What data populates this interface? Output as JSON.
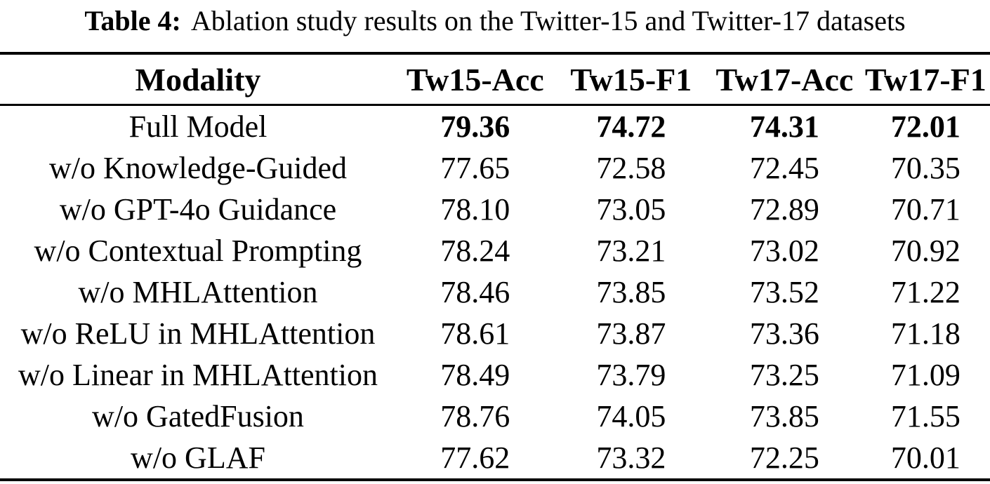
{
  "caption": {
    "label": "Table 4:",
    "text": "Ablation study results on the Twitter-15 and Twitter-17 datasets"
  },
  "table": {
    "columns": [
      "Modality",
      "Tw15-Acc",
      "Tw15-F1",
      "Tw17-Acc",
      "Tw17-F1"
    ],
    "rows": [
      {
        "modality": "Full Model",
        "values": [
          "79.36",
          "74.72",
          "74.31",
          "72.01"
        ],
        "bold_values": true
      },
      {
        "modality": "w/o Knowledge-Guided",
        "values": [
          "77.65",
          "72.58",
          "72.45",
          "70.35"
        ],
        "bold_values": false
      },
      {
        "modality": "w/o GPT-4o Guidance",
        "values": [
          "78.10",
          "73.05",
          "72.89",
          "70.71"
        ],
        "bold_values": false
      },
      {
        "modality": "w/o Contextual Prompting",
        "values": [
          "78.24",
          "73.21",
          "73.02",
          "70.92"
        ],
        "bold_values": false
      },
      {
        "modality": "w/o MHLAttention",
        "values": [
          "78.46",
          "73.85",
          "73.52",
          "71.22"
        ],
        "bold_values": false
      },
      {
        "modality": "w/o ReLU in MHLAttention",
        "values": [
          "78.61",
          "73.87",
          "73.36",
          "71.18"
        ],
        "bold_values": false
      },
      {
        "modality": "w/o Linear in MHLAttention",
        "values": [
          "78.49",
          "73.79",
          "73.25",
          "71.09"
        ],
        "bold_values": false
      },
      {
        "modality": "w/o GatedFusion",
        "values": [
          "78.76",
          "74.05",
          "73.85",
          "71.55"
        ],
        "bold_values": false
      },
      {
        "modality": "w/o GLAF",
        "values": [
          "77.62",
          "73.32",
          "72.25",
          "70.01"
        ],
        "bold_values": false
      }
    ]
  }
}
